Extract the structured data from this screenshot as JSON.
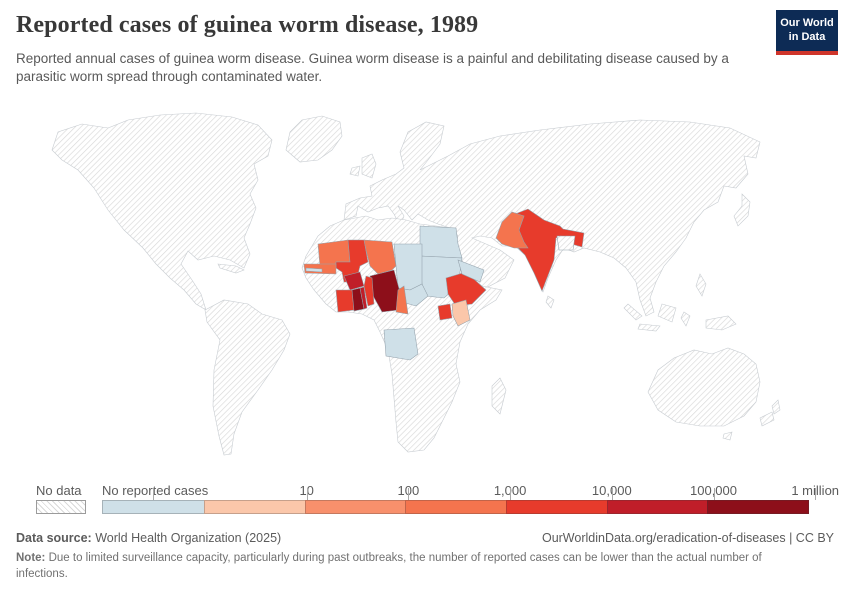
{
  "header": {
    "title": "Reported cases of guinea worm disease, 1989",
    "subtitle": "Reported annual cases of guinea worm disease. Guinea worm disease is a painful and debilitating disease caused by a parasitic worm spread through contaminated water.",
    "logo": {
      "line1": "Our World",
      "line2": "in Data"
    }
  },
  "legend": {
    "no_data_label": "No data",
    "zero_label": "No reported cases",
    "tick_labels": [
      "10",
      "100",
      "1,000",
      "10,000",
      "100,000",
      "1 million"
    ]
  },
  "footer": {
    "source_label": "Data source:",
    "source_text": " World Health Organization (2025)",
    "link_text": "OurWorldinData.org/eradication-of-diseases | CC BY",
    "note_label": "Note:",
    "note_text": " Due to limited surveillance capacity, particularly during past outbreaks, the number of reported cases can be lower than the actual number of infections."
  },
  "chart_data": {
    "type": "choropleth",
    "title": "Reported cases of guinea worm disease",
    "year": 1989,
    "unit": "reported cases",
    "legend_bins": [
      {
        "id": "no-data",
        "label": "No data",
        "style": "hatched"
      },
      {
        "id": "0",
        "label": "No reported cases",
        "color": "#cfe0e8"
      },
      {
        "id": "1-10",
        "label": "1 to 10",
        "color": "#fbc7aa",
        "tick": "10"
      },
      {
        "id": "10-100",
        "label": "10 to 100",
        "color": "#f8906c",
        "tick": "100"
      },
      {
        "id": "100-1000",
        "label": "100 to 1,000",
        "color": "#f4744e",
        "tick": "1,000"
      },
      {
        "id": "1000-10000",
        "label": "1,000 to 10,000",
        "color": "#e73b2c",
        "tick": "10,000"
      },
      {
        "id": "10000-100000",
        "label": "10,000 to 100,000",
        "color": "#c01e29",
        "tick": "100,000"
      },
      {
        "id": "100000-1000000",
        "label": "100,000 to 1 million",
        "color": "#8d0f1a",
        "tick": "1 million"
      }
    ],
    "countries": {
      "Mauritania": "100-1000",
      "Senegal": "100-1000",
      "Gambia": "0",
      "Mali": "1000-10000",
      "Burkina Faso": "10000-100000",
      "Cote d'Ivoire": "1000-10000",
      "Ghana": "100000-1000000",
      "Togo": "10000-100000",
      "Benin": "1000-10000",
      "Niger": "100-1000",
      "Nigeria": "100000-1000000",
      "Cameroon": "100-1000",
      "Chad": "0",
      "Sudan": "0",
      "Central African Republic": "0",
      "Egypt": "0",
      "Ethiopia": "1000-10000",
      "Uganda": "1000-10000",
      "Kenya": "1-10",
      "Angola": "0",
      "Yemen": "0",
      "Pakistan": "100-1000",
      "India": "1000-10000"
    },
    "all_other_countries": "no-data"
  }
}
